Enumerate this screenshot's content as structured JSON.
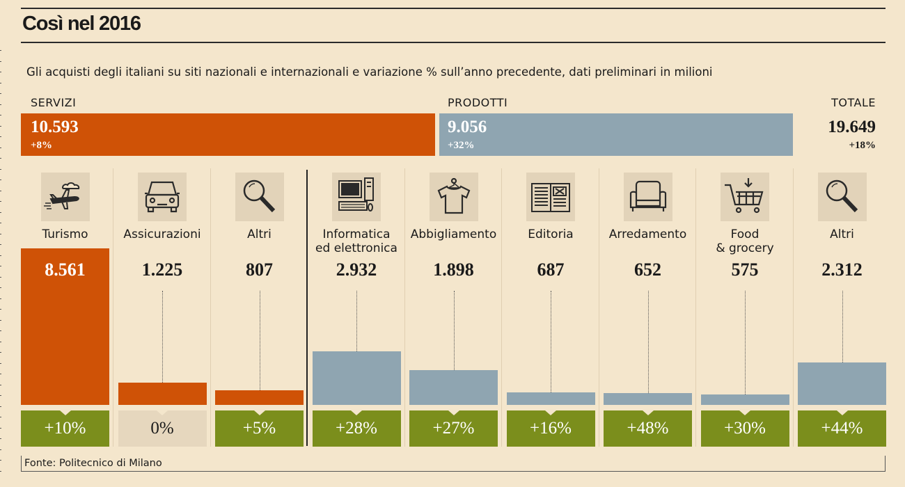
{
  "title": "Così nel 2016",
  "subtitle": "Gli acquisti degli italiani su siti nazionali e internazionali e variazione % sull’anno precedente, dati preliminari in milioni",
  "source": "Fonte: Politecnico di Milano",
  "colors": {
    "servizi": "#cf5206",
    "prodotti": "#8fa5b1",
    "pct_positive": "#7b8e1c",
    "pct_zero": "#e6d7be",
    "icon_bg": "#e2d3b9",
    "background": "#f4e6cc"
  },
  "summary": {
    "servizi": {
      "label": "SERVIZI",
      "value": "10.593",
      "change": "+8%",
      "amount": 10593
    },
    "prodotti": {
      "label": "PRODOTTI",
      "value": "9.056",
      "change": "+32%",
      "amount": 9056
    },
    "totale": {
      "label": "TOTALE",
      "value": "19.649",
      "change": "+18%"
    }
  },
  "chart_data": {
    "type": "bar",
    "title": "Così nel 2016",
    "xlabel": "",
    "ylabel": "milioni",
    "ylim": [
      0,
      8561
    ],
    "categories": [
      "Turismo",
      "Assicurazioni",
      "Altri",
      "Informatica ed elettronica",
      "Abbigliamento",
      "Editoria",
      "Arredamento",
      "Food & grocery",
      "Altri"
    ],
    "groups": [
      "servizi",
      "servizi",
      "servizi",
      "prodotti",
      "prodotti",
      "prodotti",
      "prodotti",
      "prodotti",
      "prodotti"
    ],
    "values": [
      8561,
      1225,
      807,
      2932,
      1898,
      687,
      652,
      575,
      2312
    ],
    "changes_pct": [
      10,
      0,
      5,
      28,
      27,
      16,
      48,
      30,
      44
    ]
  },
  "items": [
    {
      "label1": "Turismo",
      "label2": "",
      "value": "8.561",
      "change": "+10%",
      "icon": "airplane-icon"
    },
    {
      "label1": "Assicurazioni",
      "label2": "",
      "value": "1.225",
      "change": "0%",
      "icon": "car-icon"
    },
    {
      "label1": "Altri",
      "label2": "",
      "value": "807",
      "change": "+5%",
      "icon": "magnifier-icon"
    },
    {
      "label1": "Informatica",
      "label2": "ed elettronica",
      "value": "2.932",
      "change": "+28%",
      "icon": "computer-icon"
    },
    {
      "label1": "Abbigliamento",
      "label2": "",
      "value": "1.898",
      "change": "+27%",
      "icon": "tshirt-icon"
    },
    {
      "label1": "Editoria",
      "label2": "",
      "value": "687",
      "change": "+16%",
      "icon": "book-icon"
    },
    {
      "label1": "Arredamento",
      "label2": "",
      "value": "652",
      "change": "+48%",
      "icon": "armchair-icon"
    },
    {
      "label1": "Food",
      "label2": "& grocery",
      "value": "575",
      "change": "+30%",
      "icon": "shopping-cart-icon"
    },
    {
      "label1": "Altri",
      "label2": "",
      "value": "2.312",
      "change": "+44%",
      "icon": "magnifier-icon"
    }
  ]
}
